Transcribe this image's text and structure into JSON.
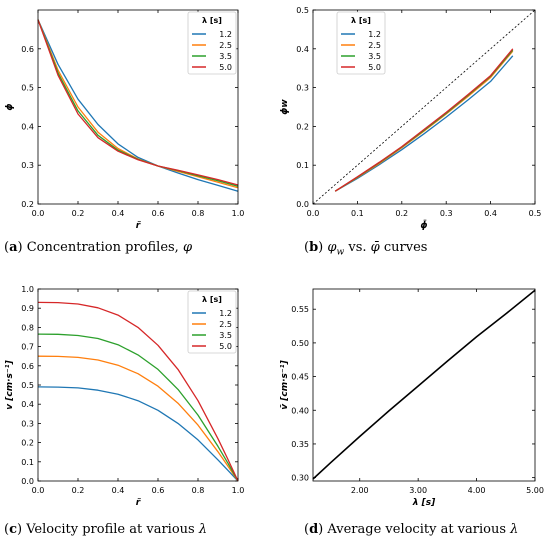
{
  "palette": {
    "s1": "#1f77b4",
    "s2": "#ff7f0e",
    "s3": "#2ca02c",
    "s4": "#d62728",
    "ink": "#000000"
  },
  "captions": {
    "a": {
      "letter": "(a)",
      "text": "Concentration profiles, ",
      "symbol": "φ"
    },
    "b": {
      "letter": "(b)",
      "text": " vs. ",
      "symbol1": "φ",
      "sub1": "w",
      "symbol2": "φ̄",
      "tail": " curves"
    },
    "c": {
      "letter": "(c)",
      "text": "Velocity profile at various ",
      "symbol": "λ"
    },
    "d": {
      "letter": "(d)",
      "text": "Average velocity at various ",
      "symbol": "λ"
    }
  },
  "chart_data": [
    {
      "id": "a",
      "type": "line",
      "xlabel": "r̃",
      "ylabel": "ϕ",
      "xlim": [
        0.0,
        1.0
      ],
      "ylim": [
        0.2,
        0.7
      ],
      "xticks": [
        "0.0",
        "0.2",
        "0.4",
        "0.6",
        "0.8",
        "1.0"
      ],
      "yticks": [
        "0.2",
        "0.3",
        "0.4",
        "0.5",
        "0.6"
      ],
      "legend": {
        "title": "λ [s]",
        "position": "top-right"
      },
      "x": [
        0.0,
        0.1,
        0.2,
        0.3,
        0.4,
        0.5,
        0.6,
        0.7,
        0.8,
        0.9,
        1.0
      ],
      "series": [
        {
          "name": "1.2",
          "values": [
            0.675,
            0.56,
            0.47,
            0.405,
            0.355,
            0.32,
            0.298,
            0.28,
            0.263,
            0.248,
            0.233
          ]
        },
        {
          "name": "2.5",
          "values": [
            0.675,
            0.545,
            0.45,
            0.385,
            0.343,
            0.316,
            0.298,
            0.284,
            0.27,
            0.256,
            0.242
          ]
        },
        {
          "name": "3.5",
          "values": [
            0.675,
            0.538,
            0.44,
            0.377,
            0.339,
            0.315,
            0.298,
            0.286,
            0.273,
            0.26,
            0.246
          ]
        },
        {
          "name": "5.0",
          "values": [
            0.675,
            0.532,
            0.432,
            0.371,
            0.336,
            0.314,
            0.298,
            0.287,
            0.275,
            0.263,
            0.249
          ]
        }
      ]
    },
    {
      "id": "b",
      "type": "line",
      "xlabel": "ϕ̄",
      "ylabel": "ϕw",
      "xlim": [
        0.0,
        0.5
      ],
      "ylim": [
        0.0,
        0.5
      ],
      "xticks": [
        "0.0",
        "0.1",
        "0.2",
        "0.3",
        "0.4",
        "0.5"
      ],
      "yticks": [
        "0.0",
        "0.1",
        "0.2",
        "0.3",
        "0.4",
        "0.5"
      ],
      "legend": {
        "title": "λ [s]",
        "position": "top-left"
      },
      "x": [
        0.05,
        0.1,
        0.15,
        0.2,
        0.25,
        0.3,
        0.35,
        0.4,
        0.45
      ],
      "series": [
        {
          "name": "1.2",
          "values": [
            0.033,
            0.066,
            0.102,
            0.14,
            0.181,
            0.224,
            0.269,
            0.316,
            0.382
          ]
        },
        {
          "name": "2.5",
          "values": [
            0.033,
            0.068,
            0.105,
            0.145,
            0.188,
            0.232,
            0.278,
            0.326,
            0.394
          ]
        },
        {
          "name": "3.5",
          "values": [
            0.033,
            0.069,
            0.107,
            0.147,
            0.19,
            0.234,
            0.281,
            0.329,
            0.397
          ]
        },
        {
          "name": "5.0",
          "values": [
            0.033,
            0.07,
            0.108,
            0.148,
            0.192,
            0.236,
            0.283,
            0.331,
            0.4
          ]
        }
      ],
      "reference_line": {
        "style": "dashed",
        "x": [
          0.0,
          0.5
        ],
        "y": [
          0.0,
          0.5
        ]
      }
    },
    {
      "id": "c",
      "type": "line",
      "xlabel": "r̃",
      "ylabel": "v [cm·s⁻¹]",
      "xlim": [
        0.0,
        1.0
      ],
      "ylim": [
        0.0,
        1.0
      ],
      "xticks": [
        "0.0",
        "0.2",
        "0.4",
        "0.6",
        "0.8",
        "1.0"
      ],
      "yticks": [
        "0.0",
        "0.1",
        "0.2",
        "0.3",
        "0.4",
        "0.5",
        "0.6",
        "0.7",
        "0.8",
        "0.9",
        "1.0"
      ],
      "legend": {
        "title": "λ [s]",
        "position": "top-right"
      },
      "x": [
        0.0,
        0.1,
        0.2,
        0.3,
        0.4,
        0.5,
        0.6,
        0.7,
        0.8,
        0.9,
        0.95,
        1.0
      ],
      "series": [
        {
          "name": "1.2",
          "values": [
            0.49,
            0.489,
            0.485,
            0.473,
            0.452,
            0.418,
            0.368,
            0.3,
            0.214,
            0.11,
            0.055,
            0.0
          ]
        },
        {
          "name": "2.5",
          "values": [
            0.65,
            0.649,
            0.644,
            0.63,
            0.603,
            0.559,
            0.494,
            0.405,
            0.291,
            0.152,
            0.077,
            0.0
          ]
        },
        {
          "name": "3.5",
          "values": [
            0.765,
            0.764,
            0.758,
            0.742,
            0.71,
            0.657,
            0.581,
            0.477,
            0.343,
            0.18,
            0.092,
            0.0
          ]
        },
        {
          "name": "5.0",
          "values": [
            0.93,
            0.929,
            0.922,
            0.902,
            0.864,
            0.8,
            0.707,
            0.581,
            0.418,
            0.22,
            0.112,
            0.0
          ]
        }
      ]
    },
    {
      "id": "d",
      "type": "line",
      "xlabel": "λ [s]",
      "ylabel": "v̄ [cm·s⁻¹]",
      "xlim": [
        1.2,
        5.0
      ],
      "ylim": [
        0.295,
        0.58
      ],
      "xticks": [
        "2.00",
        "3.00",
        "4.00",
        "5.00"
      ],
      "yticks": [
        "0.30",
        "0.35",
        "0.40",
        "0.45",
        "0.50",
        "0.55"
      ],
      "x": [
        1.2,
        1.5,
        2.0,
        2.5,
        3.0,
        3.5,
        4.0,
        4.5,
        5.0
      ],
      "series": [
        {
          "values": [
            0.298,
            0.322,
            0.361,
            0.399,
            0.436,
            0.473,
            0.509,
            0.543,
            0.578
          ]
        }
      ]
    }
  ]
}
